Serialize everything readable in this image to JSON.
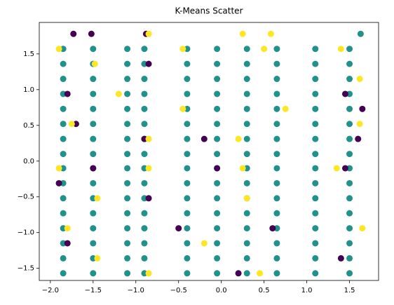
{
  "chart_data": {
    "type": "scatter",
    "title": "K-Means Scatter",
    "xlim": [
      -2.13,
      1.84
    ],
    "ylim": [
      -1.67,
      1.94
    ],
    "xticks": [
      {
        "value": -2,
        "label": "−2.0"
      },
      {
        "value": -1.5,
        "label": "−1.5"
      },
      {
        "value": -1,
        "label": "−1.0"
      },
      {
        "value": -0.5,
        "label": "−0.5"
      },
      {
        "value": 0,
        "label": "0.0"
      },
      0.5,
      {
        "value": 1,
        "label": "1.0"
      },
      1.5
    ],
    "yticks": [
      {
        "value": -1.5,
        "label": "−1.5"
      },
      {
        "value": -1,
        "label": "−1.0"
      },
      {
        "value": -0.5,
        "label": "−0.5"
      },
      {
        "value": 0,
        "label": "0.0"
      },
      0.5,
      {
        "value": 1,
        "label": "1.0"
      },
      1.5
    ],
    "series": [
      {
        "color": "#21918c",
        "x": [
          -1.85,
          -1.5,
          -1.1,
          -0.9,
          -0.4,
          -0.05,
          0.3,
          0.65,
          1.1,
          1.5,
          -1.85,
          -1.5,
          -1.1,
          -0.9,
          -0.4,
          -0.05,
          0.3,
          0.65,
          1.1,
          1.5,
          -1.85,
          -1.5,
          -1.1,
          -0.9,
          -0.4,
          -0.05,
          0.3,
          0.65,
          1.1,
          1.5,
          -1.85,
          -1.5,
          -1.1,
          -0.9,
          -0.4,
          -0.05,
          0.3,
          0.65,
          1.1,
          1.5,
          -1.85,
          -1.5,
          -1.1,
          -0.9,
          -0.4,
          -0.05,
          0.3,
          0.65,
          1.1,
          1.5,
          -1.85,
          -1.5,
          -1.1,
          -0.9,
          -0.4,
          -0.05,
          0.3,
          0.65,
          1.1,
          1.5,
          -1.85,
          -1.5,
          -1.1,
          -0.9,
          -0.4,
          -0.05,
          0.3,
          0.65,
          1.1,
          1.5,
          -1.85,
          -1.5,
          -1.1,
          -0.9,
          -0.4,
          -0.05,
          0.3,
          0.65,
          1.1,
          1.5,
          -1.85,
          -1.5,
          -1.1,
          -0.9,
          -0.4,
          -0.05,
          0.3,
          0.65,
          1.1,
          1.5,
          -1.85,
          -1.5,
          -1.1,
          -0.9,
          -0.4,
          -0.05,
          0.3,
          0.65,
          1.1,
          1.5,
          -1.85,
          -1.5,
          -1.1,
          -0.9,
          -0.4,
          -0.05,
          0.3,
          0.65,
          1.1,
          1.5,
          -1.85,
          -1.5,
          -1.1,
          -0.9,
          -0.4,
          -0.05,
          0.3,
          0.65,
          1.1,
          1.5,
          -1.85,
          -1.5,
          -1.1,
          -0.9,
          -0.4,
          -0.05,
          0.3,
          0.65,
          1.1,
          1.5,
          -1.85,
          -1.5,
          -1.1,
          -0.9,
          -0.4,
          -0.05,
          0.3,
          0.65,
          1.1,
          1.5,
          -1.85,
          -1.5,
          -1.1,
          -0.9,
          -0.4,
          -0.05,
          0.3,
          0.65,
          1.1,
          1.5,
          -1.85,
          -1.5,
          -1.1,
          -0.9,
          -0.4,
          -0.05,
          0.3,
          0.65,
          1.1,
          1.5,
          1.63
        ],
        "y": [
          1.57,
          1.57,
          1.57,
          1.57,
          1.57,
          1.57,
          1.57,
          1.57,
          1.57,
          1.57,
          1.36,
          1.36,
          1.36,
          1.36,
          1.36,
          1.36,
          1.36,
          1.36,
          1.36,
          1.36,
          1.15,
          1.15,
          1.15,
          1.15,
          1.15,
          1.15,
          1.15,
          1.15,
          1.15,
          1.15,
          0.94,
          0.94,
          0.94,
          0.94,
          0.94,
          0.94,
          0.94,
          0.94,
          0.94,
          0.94,
          0.73,
          0.73,
          0.73,
          0.73,
          0.73,
          0.73,
          0.73,
          0.73,
          0.73,
          0.73,
          0.52,
          0.52,
          0.52,
          0.52,
          0.52,
          0.52,
          0.52,
          0.52,
          0.52,
          0.52,
          0.31,
          0.31,
          0.31,
          0.31,
          0.31,
          0.31,
          0.31,
          0.31,
          0.31,
          0.31,
          0.1,
          0.1,
          0.1,
          0.1,
          0.1,
          0.1,
          0.1,
          0.1,
          0.1,
          0.1,
          -0.1,
          -0.1,
          -0.1,
          -0.1,
          -0.1,
          -0.1,
          -0.1,
          -0.1,
          -0.1,
          -0.1,
          -0.31,
          -0.31,
          -0.31,
          -0.31,
          -0.31,
          -0.31,
          -0.31,
          -0.31,
          -0.31,
          -0.31,
          -0.52,
          -0.52,
          -0.52,
          -0.52,
          -0.52,
          -0.52,
          -0.52,
          -0.52,
          -0.52,
          -0.52,
          -0.73,
          -0.73,
          -0.73,
          -0.73,
          -0.73,
          -0.73,
          -0.73,
          -0.73,
          -0.73,
          -0.73,
          -0.94,
          -0.94,
          -0.94,
          -0.94,
          -0.94,
          -0.94,
          -0.94,
          -0.94,
          -0.94,
          -0.94,
          -1.15,
          -1.15,
          -1.15,
          -1.15,
          -1.15,
          -1.15,
          -1.15,
          -1.15,
          -1.15,
          -1.15,
          -1.36,
          -1.36,
          -1.36,
          -1.36,
          -1.36,
          -1.36,
          -1.36,
          -1.36,
          -1.36,
          -1.36,
          -1.57,
          -1.57,
          -1.57,
          -1.57,
          -1.57,
          -1.57,
          -1.57,
          -1.57,
          -1.57,
          -1.57,
          1.78
        ]
      },
      {
        "color": "#440154",
        "x": [
          -1.73,
          -1.52,
          -0.88,
          -0.85,
          -1.8,
          1.45,
          1.65,
          -1.7,
          -0.9,
          -0.2,
          1.6,
          -1.5,
          -0.05,
          1.45,
          -1.9,
          -0.85,
          -0.5,
          0.6,
          -1.8,
          1.4,
          0.2
        ],
        "y": [
          1.78,
          1.78,
          1.78,
          1.36,
          0.94,
          0.94,
          0.73,
          0.52,
          0.31,
          0.31,
          0.31,
          -0.1,
          -0.1,
          -0.1,
          -0.31,
          -0.52,
          -0.94,
          -0.94,
          -1.15,
          -1.36,
          -1.57
        ]
      },
      {
        "color": "#fde725",
        "x": [
          -0.85,
          0.25,
          0.58,
          -1.9,
          -1.48,
          -0.45,
          0.5,
          1.4,
          1.62,
          -1.2,
          -0.45,
          0.75,
          -1.75,
          1.62,
          -0.85,
          0.2,
          -1.9,
          -0.85,
          0.25,
          1.35,
          -1.45,
          0.3,
          -1.8,
          1.65,
          -0.2,
          -1.45,
          -0.85,
          0.45
        ],
        "y": [
          1.78,
          1.78,
          1.78,
          1.57,
          1.36,
          1.57,
          1.57,
          1.57,
          1.15,
          0.94,
          0.73,
          0.73,
          0.52,
          0.52,
          0.31,
          0.31,
          -0.1,
          -0.1,
          -0.1,
          -0.1,
          -0.52,
          -0.52,
          -0.94,
          -0.94,
          -1.15,
          -1.36,
          -1.57,
          -1.57
        ]
      }
    ]
  }
}
